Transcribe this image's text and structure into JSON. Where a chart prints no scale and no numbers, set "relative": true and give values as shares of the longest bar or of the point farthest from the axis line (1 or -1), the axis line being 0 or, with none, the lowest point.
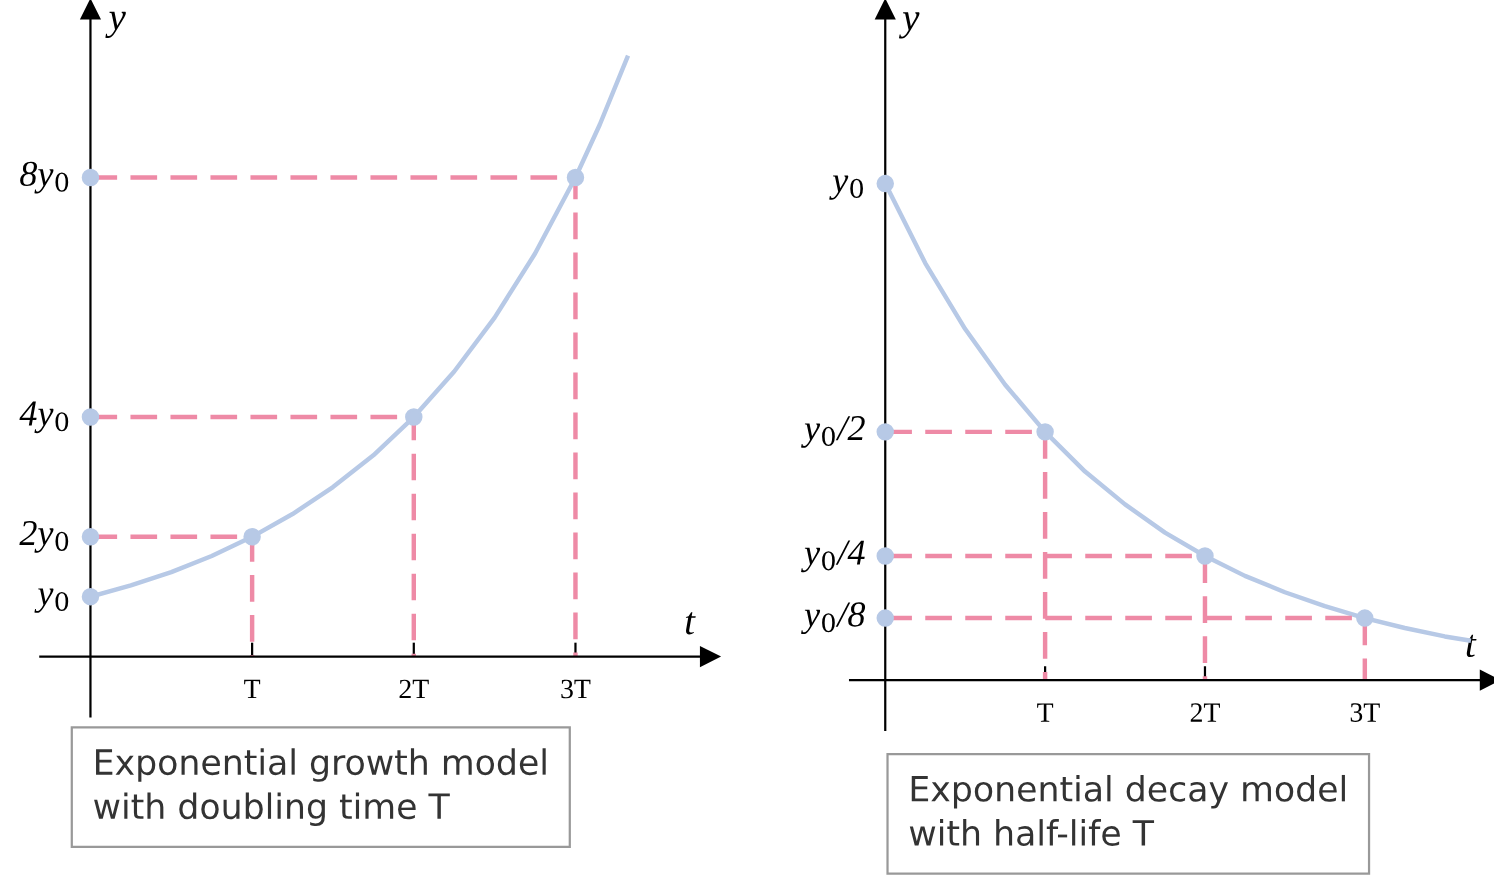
{
  "chart_data": [
    {
      "type": "line",
      "relative": true,
      "xlabel": "t",
      "ylabel": "y",
      "xlim": [
        -0.31,
        3.83
      ],
      "xticks": [
        {
          "value": 1,
          "label": "T"
        },
        {
          "value": 2,
          "label": "2T"
        },
        {
          "value": 3,
          "label": "3T"
        }
      ],
      "series": [
        {
          "type": "line",
          "color": "#b7c9e6",
          "x": [
            0,
            0.25,
            0.5,
            0.75,
            1,
            1.25,
            1.5,
            1.75,
            2,
            2.25,
            2.5,
            2.75,
            3,
            3.15,
            3.32
          ],
          "values": [
            0.1,
            0.119,
            0.141,
            0.168,
            0.2,
            0.238,
            0.283,
            0.336,
            0.4,
            0.476,
            0.566,
            0.673,
            0.8,
            0.888,
            1
          ]
        },
        {
          "type": "line",
          "line_style": "dashed",
          "color": "#ee8aa6",
          "x": [
            0,
            1,
            1,
            null,
            0,
            2,
            2,
            null,
            0,
            3,
            3
          ],
          "values": [
            0.2,
            0.2,
            0,
            null,
            0.4,
            0.4,
            0,
            null,
            0.8,
            0.8,
            0
          ]
        },
        {
          "type": "scatter",
          "marker": "circle",
          "color": "#b7c9e6",
          "x": [
            0,
            0,
            0,
            0,
            1,
            2,
            3
          ],
          "values": [
            0.1,
            0.2,
            0.4,
            0.8,
            0.2,
            0.4,
            0.8
          ]
        }
      ],
      "annotations": [
        "y$_{0}$",
        "2y$_{0}$",
        "4y$_{0}$",
        "8y$_{0}$",
        "Exponential growth model\nwith doubling time T"
      ]
    },
    {
      "type": "line",
      "relative": true,
      "xlabel": "t",
      "ylabel": "y",
      "xlim": [
        -0.22,
        3.78
      ],
      "xticks": [
        {
          "value": 1,
          "label": "T"
        },
        {
          "value": 2,
          "label": "2T"
        },
        {
          "value": 3,
          "label": "3T"
        }
      ],
      "series": [
        {
          "type": "line",
          "color": "#b7c9e6",
          "x": [
            0,
            0.25,
            0.5,
            0.75,
            1,
            1.25,
            1.5,
            1.75,
            2,
            2.25,
            2.5,
            2.75,
            3,
            3.25,
            3.5,
            3.65
          ],
          "values": [
            1,
            0.84,
            0.707,
            0.595,
            0.5,
            0.42,
            0.354,
            0.297,
            0.25,
            0.21,
            0.177,
            0.149,
            0.125,
            0.105,
            0.088,
            0.08
          ]
        },
        {
          "type": "line",
          "line_style": "dashed",
          "color": "#ee8aa6",
          "x": [
            0,
            1,
            1,
            null,
            0,
            2,
            2,
            null,
            0,
            3,
            3
          ],
          "values": [
            0.5,
            0.5,
            0,
            null,
            0.25,
            0.25,
            0,
            null,
            0.125,
            0.125,
            0
          ]
        },
        {
          "type": "scatter",
          "marker": "circle",
          "color": "#b7c9e6",
          "x": [
            0,
            0,
            0,
            0,
            1,
            2,
            3
          ],
          "values": [
            1,
            0.5,
            0.25,
            0.125,
            0.5,
            0.25,
            0.125
          ]
        }
      ],
      "annotations": [
        "y$_{0}$",
        "y$_{0}$/2",
        "y$_{0}$/4",
        "y$_{0}$/8",
        "Exponential decay model\nwith half-life T"
      ]
    }
  ]
}
